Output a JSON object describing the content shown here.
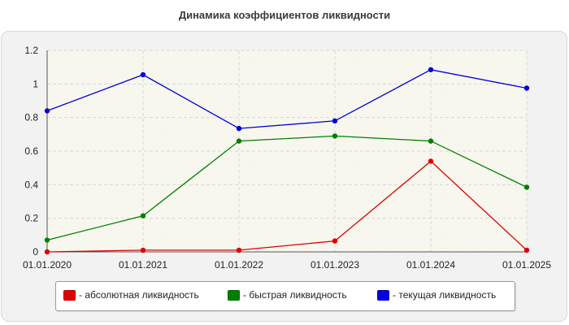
{
  "chart_data": {
    "type": "line",
    "title": "Динамика коэффициентов ликвидности",
    "categories": [
      "01.01.2020",
      "01.01.2021",
      "01.01.2022",
      "01.01.2023",
      "01.01.2024",
      "01.01.2025"
    ],
    "ylim": [
      0,
      1.2
    ],
    "yticks": [
      "0",
      "0.2",
      "0.4",
      "0.6",
      "0.8",
      "1",
      "1.2"
    ],
    "grid": true,
    "legend_position": "bottom",
    "series": [
      {
        "name": "- абсолютная ликвидность",
        "color": "#e00000",
        "values": [
          0.0,
          0.01,
          0.01,
          0.065,
          0.54,
          0.01
        ]
      },
      {
        "name": "- быстрая ликвидность",
        "color": "#008000",
        "values": [
          0.07,
          0.215,
          0.66,
          0.69,
          0.66,
          0.385
        ]
      },
      {
        "name": "- текущая ликвидность",
        "color": "#0000e0",
        "values": [
          0.84,
          1.055,
          0.735,
          0.78,
          1.085,
          0.975
        ]
      }
    ]
  }
}
